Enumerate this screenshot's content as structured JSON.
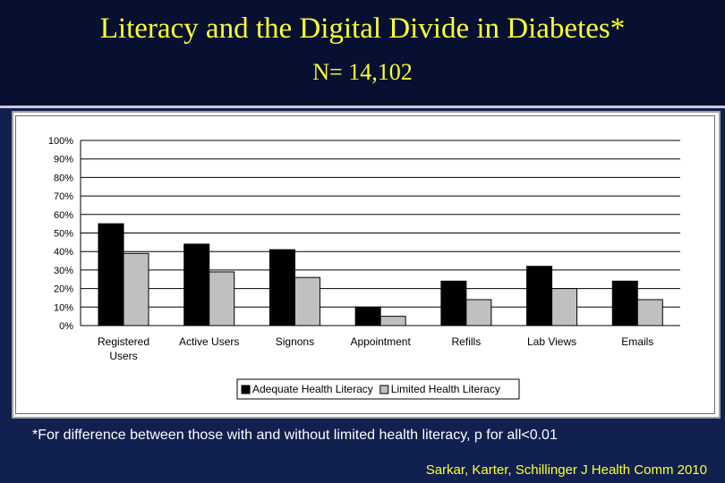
{
  "slide": {
    "title": "Literacy and the Digital Divide in Diabetes*",
    "subtitle": "N= 14,102",
    "footnote": "*For difference between those with and without limited health literacy, p for all<0.01",
    "citation": "Sarkar, Karter, Schillinger J Health Comm 2010",
    "colors": {
      "background": "#10204f",
      "title": "#ffff33",
      "footnote": "#ffffff"
    }
  },
  "chart_data": {
    "type": "bar",
    "categories": [
      "Registered\nUsers",
      "Active Users",
      "Signons",
      "Appointment",
      "Refills",
      "Lab Views",
      "Emails"
    ],
    "series": [
      {
        "name": "Adequate Health Literacy",
        "values": [
          55,
          44,
          41,
          10,
          24,
          32,
          24
        ],
        "color": "#000000"
      },
      {
        "name": "Limited Health Literacy",
        "values": [
          39,
          29,
          26,
          5,
          14,
          20,
          14
        ],
        "color": "#c0c0c0"
      }
    ],
    "ylim": [
      0,
      100
    ],
    "yticks": [
      "0%",
      "10%",
      "20%",
      "30%",
      "40%",
      "50%",
      "60%",
      "70%",
      "80%",
      "90%",
      "100%"
    ],
    "grid": true,
    "legend_position": "bottom-right"
  }
}
